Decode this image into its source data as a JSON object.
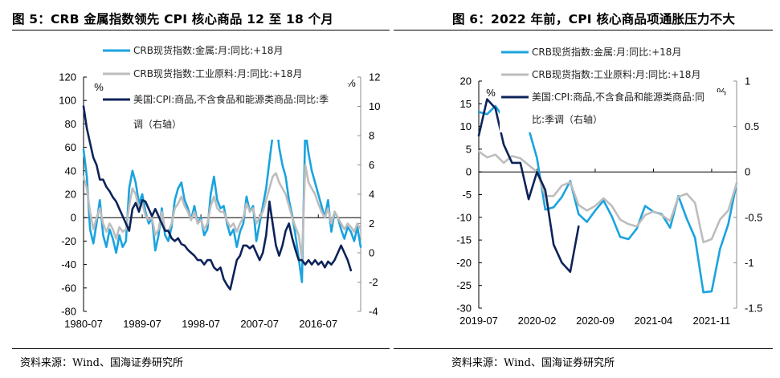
{
  "figures": [
    {
      "title": "图 5：CRB 金属指数领先 CPI 核心商品 12 至 18 个月",
      "source": "资料来源：Wind、国海证券研究所"
    },
    {
      "title": "图 6：2022 年前，CPI 核心商品项通胀压力不大",
      "source": "资料来源：Wind、国海证券研究所"
    }
  ],
  "chart_data": [
    {
      "type": "line",
      "title": "图 5：CRB 金属指数领先 CPI 核心商品 12 至 18 个月",
      "xlabel": "",
      "ylabel": "%",
      "y2label": "%",
      "x_tick_labels": [
        "1980-07",
        "1989-07",
        "1998-07",
        "2007-07",
        "2016-07"
      ],
      "x_range": [
        1980.5,
        2023.0
      ],
      "ylim": [
        -80,
        120
      ],
      "y_ticks": [
        120,
        100,
        80,
        60,
        40,
        20,
        0,
        -20,
        -40,
        -60,
        -80
      ],
      "y2lim": [
        -4,
        12
      ],
      "y2_ticks": [
        12,
        10,
        8,
        6,
        4,
        2,
        0,
        -2,
        -4
      ],
      "legend_position": "top-center",
      "grid": false,
      "series": [
        {
          "name": "CRB现货指数:金属:月:同比:+18月",
          "axis": "left",
          "color": "#1AA3DE",
          "x": [
            1980.5,
            1981.0,
            1981.5,
            1982.0,
            1982.5,
            1983.0,
            1983.5,
            1984.0,
            1984.5,
            1985.0,
            1985.5,
            1986.0,
            1986.5,
            1987.0,
            1987.5,
            1988.0,
            1988.5,
            1989.0,
            1989.5,
            1990.0,
            1990.5,
            1991.0,
            1991.5,
            1992.0,
            1992.5,
            1993.0,
            1993.5,
            1994.0,
            1994.5,
            1995.0,
            1995.5,
            1996.0,
            1996.5,
            1997.0,
            1997.5,
            1998.0,
            1998.5,
            1999.0,
            1999.5,
            2000.0,
            2000.5,
            2001.0,
            2001.5,
            2002.0,
            2002.5,
            2003.0,
            2003.5,
            2004.0,
            2004.5,
            2005.0,
            2005.5,
            2006.0,
            2006.5,
            2007.0,
            2007.5,
            2008.0,
            2008.5,
            2009.0,
            2009.5,
            2010.0,
            2010.5,
            2011.0,
            2011.5,
            2012.0,
            2012.5,
            2013.0,
            2013.5,
            2014.0,
            2014.5,
            2015.0,
            2015.5,
            2016.0,
            2016.5,
            2017.0,
            2017.5,
            2018.0,
            2018.5,
            2019.0,
            2019.5,
            2020.0,
            2020.5,
            2021.0,
            2021.5,
            2022.0,
            2022.5,
            2023.0
          ],
          "values": [
            58,
            35,
            -10,
            -22,
            -5,
            15,
            -15,
            -25,
            -10,
            -18,
            -30,
            -15,
            -25,
            -20,
            25,
            40,
            30,
            12,
            20,
            5,
            -5,
            0,
            -28,
            -15,
            8,
            -15,
            -20,
            -8,
            15,
            25,
            30,
            15,
            8,
            -2,
            10,
            -5,
            0,
            -15,
            -10,
            20,
            35,
            15,
            8,
            10,
            -5,
            -15,
            -10,
            -25,
            -12,
            -5,
            18,
            5,
            10,
            -20,
            -5,
            10,
            25,
            48,
            70,
            85,
            60,
            45,
            35,
            15,
            2,
            -15,
            -35,
            -55,
            75,
            55,
            40,
            30,
            20,
            10,
            0,
            15,
            -12,
            5,
            0,
            -10,
            -18,
            -8,
            -12,
            -20,
            -8,
            -25
          ]
        },
        {
          "name": "CRB现货指数:工业原料:月:同比:+18月",
          "axis": "left",
          "color": "#BDBDBD",
          "x": [
            1980.5,
            1981.0,
            1981.5,
            1982.0,
            1982.5,
            1983.0,
            1983.5,
            1984.0,
            1984.5,
            1985.0,
            1985.5,
            1986.0,
            1986.5,
            1987.0,
            1987.5,
            1988.0,
            1988.5,
            1989.0,
            1989.5,
            1990.0,
            1990.5,
            1991.0,
            1991.5,
            1992.0,
            1992.5,
            1993.0,
            1993.5,
            1994.0,
            1994.5,
            1995.0,
            1995.5,
            1996.0,
            1996.5,
            1997.0,
            1997.5,
            1998.0,
            1998.5,
            1999.0,
            1999.5,
            2000.0,
            2000.5,
            2001.0,
            2001.5,
            2002.0,
            2002.5,
            2003.0,
            2003.5,
            2004.0,
            2004.5,
            2005.0,
            2005.5,
            2006.0,
            2006.5,
            2007.0,
            2007.5,
            2008.0,
            2008.5,
            2009.0,
            2009.5,
            2010.0,
            2010.5,
            2011.0,
            2011.5,
            2012.0,
            2012.5,
            2013.0,
            2013.5,
            2014.0,
            2014.5,
            2015.0,
            2015.5,
            2016.0,
            2016.5,
            2017.0,
            2017.5,
            2018.0,
            2018.5,
            2019.0,
            2019.5,
            2020.0,
            2020.5,
            2021.0,
            2021.5,
            2022.0,
            2022.5,
            2023.0
          ],
          "values": [
            35,
            25,
            5,
            -10,
            0,
            8,
            -5,
            -12,
            -5,
            -10,
            -18,
            -8,
            -12,
            -10,
            10,
            25,
            20,
            8,
            12,
            2,
            -2,
            0,
            -15,
            -10,
            5,
            -10,
            -12,
            -5,
            8,
            12,
            18,
            10,
            5,
            -2,
            5,
            -5,
            -2,
            -10,
            -5,
            10,
            18,
            8,
            5,
            5,
            -3,
            -8,
            -5,
            -12,
            -5,
            0,
            12,
            5,
            8,
            -5,
            0,
            5,
            15,
            25,
            35,
            38,
            30,
            25,
            20,
            10,
            0,
            -8,
            -15,
            -35,
            45,
            30,
            25,
            20,
            12,
            5,
            0,
            8,
            -5,
            5,
            0,
            -5,
            -10,
            -5,
            -8,
            -12,
            -5,
            -10
          ]
        },
        {
          "name": "美国:CPI:商品,不含食品和能源类商品:同比:季调（右轴）",
          "axis": "right",
          "color": "#0D2359",
          "x": [
            1980.5,
            1981.0,
            1981.5,
            1982.0,
            1982.5,
            1983.0,
            1983.5,
            1984.0,
            1984.5,
            1985.0,
            1985.5,
            1986.0,
            1986.5,
            1987.0,
            1987.5,
            1988.0,
            1988.5,
            1989.0,
            1989.5,
            1990.0,
            1990.5,
            1991.0,
            1991.5,
            1992.0,
            1992.5,
            1993.0,
            1993.5,
            1994.0,
            1994.5,
            1995.0,
            1995.5,
            1996.0,
            1996.5,
            1997.0,
            1997.5,
            1998.0,
            1998.5,
            1999.0,
            1999.5,
            2000.0,
            2000.5,
            2001.0,
            2001.5,
            2002.0,
            2002.5,
            2003.0,
            2003.5,
            2004.0,
            2004.5,
            2005.0,
            2005.5,
            2006.0,
            2006.5,
            2007.0,
            2007.5,
            2008.0,
            2008.5,
            2009.0,
            2009.5,
            2010.0,
            2010.5,
            2011.0,
            2011.5,
            2012.0,
            2012.5,
            2013.0,
            2013.5,
            2014.0,
            2014.5,
            2015.0,
            2015.5,
            2016.0,
            2016.5,
            2017.0,
            2017.5,
            2018.0,
            2018.5,
            2019.0,
            2019.5,
            2020.0,
            2020.5,
            2021.0,
            2021.5
          ],
          "values": [
            10,
            8.5,
            7.5,
            6.5,
            6,
            5,
            5,
            4.5,
            4.2,
            3.8,
            3.5,
            3,
            2.5,
            2,
            1.5,
            3,
            3.4,
            2.8,
            3.6,
            3.5,
            3,
            2.5,
            3,
            2.5,
            2,
            1.5,
            1.5,
            1,
            0.8,
            1,
            0.6,
            0.5,
            0.2,
            0,
            -0.2,
            -0.5,
            -0.5,
            -0.8,
            -0.5,
            -0.5,
            -1,
            -1.2,
            -1,
            -1.8,
            -2.2,
            -2.5,
            -1.5,
            -0.5,
            -0.2,
            0.5,
            0.5,
            0.3,
            0.5,
            0,
            -0.5,
            0,
            1.2,
            3.5,
            2,
            0.5,
            -0.2,
            0.5,
            1.5,
            2,
            1,
            0.2,
            -0.5,
            -0.5,
            -0.8,
            -0.5,
            -0.8,
            -0.5,
            -0.8,
            -0.6,
            -1,
            -0.6,
            -0.8,
            -0.5,
            0,
            0.5,
            0,
            -0.5,
            -1.2
          ]
        }
      ]
    },
    {
      "type": "line",
      "title": "图 6：2022 年前，CPI 核心商品项通胀压力不大",
      "xlabel": "",
      "ylabel": "%",
      "y2label": "%",
      "x_tick_labels": [
        "2019-07",
        "2020-02",
        "2020-09",
        "2021-04",
        "2021-11"
      ],
      "x_range_months": [
        0,
        31
      ],
      "ylim": [
        -30,
        20
      ],
      "y_ticks": [
        20,
        15,
        10,
        5,
        0,
        -5,
        -10,
        -15,
        -20,
        -25,
        -30
      ],
      "y2lim": [
        -1.5,
        1
      ],
      "y2_ticks": [
        1,
        0.5,
        0,
        -0.5,
        -1,
        -1.5
      ],
      "legend_position": "top-center",
      "grid": false,
      "series": [
        {
          "name": "CRB现货指数:金属:月:同比:+18月",
          "axis": "left",
          "color": "#1AA3DE",
          "month_index": [
            0,
            1,
            2,
            3,
            4,
            5,
            6,
            7,
            8,
            9,
            10,
            11,
            12,
            13,
            14,
            15,
            16,
            17,
            18,
            19,
            20,
            21,
            22,
            23,
            24,
            25,
            26,
            27,
            28,
            29,
            30,
            31
          ],
          "values": [
            13.2,
            12.7,
            14.5,
            11.8,
            16.5,
            14.8,
            9.5,
            3,
            -8.3,
            -7.8,
            -5.5,
            -2,
            -9.3,
            -11,
            -8.5,
            -6.3,
            -9.8,
            -14.3,
            -14.8,
            -12.5,
            -7.5,
            -8.8,
            -9.3,
            -12.3,
            -5.3,
            -10.3,
            -14.5,
            -26.5,
            -26.3,
            -17,
            -11.5,
            -2.5
          ]
        },
        {
          "name": "CRB现货指数:工业原料:月:同比:+18月",
          "axis": "left",
          "color": "#BDBDBD",
          "month_index": [
            0,
            1,
            2,
            3,
            4,
            5,
            6,
            7,
            8,
            9,
            10,
            11,
            12,
            13,
            14,
            15,
            16,
            17,
            18,
            19,
            20,
            21,
            22,
            23,
            24,
            25,
            26,
            27,
            28,
            29,
            30,
            31
          ],
          "values": [
            4.5,
            3.2,
            3.8,
            2,
            3.5,
            3,
            1.5,
            0,
            -5.3,
            -5.3,
            -3,
            -2.3,
            -7.3,
            -8.5,
            -7.5,
            -5.8,
            -7.5,
            -10.5,
            -11.5,
            -12,
            -9.5,
            -8.7,
            -9.5,
            -10.8,
            -5.5,
            -4.8,
            -6.8,
            -15.5,
            -14.8,
            -10.5,
            -8.5,
            -2.5
          ]
        },
        {
          "name": "美国:CPI:商品,不含食品和能源类商品:同比:季调（右轴）",
          "axis": "right",
          "color": "#0D2359",
          "month_index": [
            0,
            1,
            2,
            3,
            4,
            5,
            6,
            7,
            8,
            9,
            10,
            11,
            12
          ],
          "values": [
            0.4,
            0.8,
            0.7,
            0.3,
            0.1,
            0.1,
            -0.3,
            0,
            -0.2,
            -0.8,
            -1.0,
            -1.1,
            -0.6
          ]
        }
      ]
    }
  ],
  "legends": [
    {
      "items": [
        {
          "lines": [
            "CRB现货指数:金属:月:同比:+18月"
          ],
          "color": "#1AA3DE"
        },
        {
          "lines": [
            "CRB现货指数:工业原料:月:同比:+18月"
          ],
          "color": "#BDBDBD"
        },
        {
          "lines": [
            "美国:CPI:商品,不含食品和能源类商品:同比:季",
            "调（右轴）"
          ],
          "color": "#0D2359"
        }
      ]
    },
    {
      "items": [
        {
          "lines": [
            "CRB现货指数:金属:月:同比:+18月"
          ],
          "color": "#1AA3DE"
        },
        {
          "lines": [
            "CRB现货指数:工业原料:月:同比:+18月"
          ],
          "color": "#BDBDBD"
        },
        {
          "lines": [
            "美国:CPI:商品,不含食品和能源类商品:同",
            "比:季调（右轴）"
          ],
          "color": "#0D2359"
        }
      ]
    }
  ],
  "axis_unit_label": "%"
}
